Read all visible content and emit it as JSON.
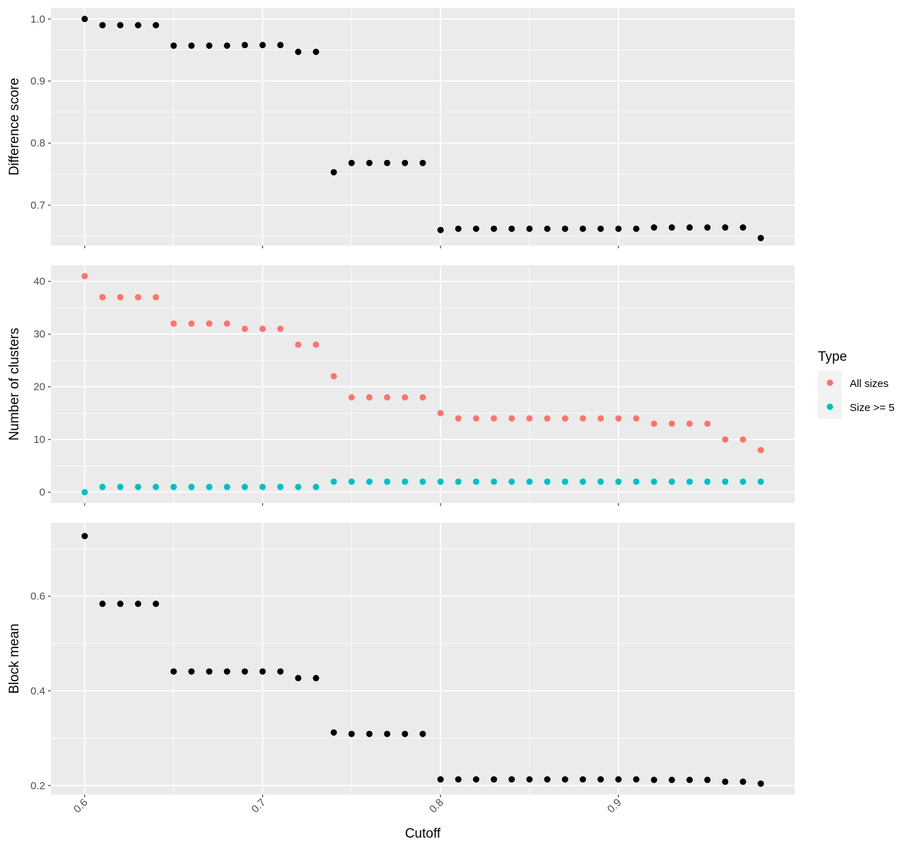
{
  "chart_data": [
    {
      "type": "scatter",
      "ylabel": "Difference score",
      "ylim": [
        0.635,
        1.018
      ],
      "yticks": [
        0.7,
        0.8,
        0.9,
        1.0
      ],
      "ytick_labels": [
        "0.7",
        "0.8",
        "0.9",
        "1.0"
      ],
      "series": [
        {
          "color": "#000000",
          "x": [
            0.6,
            0.61,
            0.62,
            0.63,
            0.64,
            0.65,
            0.66,
            0.67,
            0.68,
            0.69,
            0.7,
            0.71,
            0.72,
            0.73,
            0.74,
            0.75,
            0.76,
            0.77,
            0.78,
            0.79,
            0.8,
            0.81,
            0.82,
            0.83,
            0.84,
            0.85,
            0.86,
            0.87,
            0.88,
            0.89,
            0.9,
            0.91,
            0.92,
            0.93,
            0.94,
            0.95,
            0.96,
            0.97,
            0.98
          ],
          "y": [
            1.0,
            0.99,
            0.99,
            0.99,
            0.99,
            0.957,
            0.957,
            0.957,
            0.957,
            0.958,
            0.958,
            0.958,
            0.947,
            0.947,
            0.753,
            0.768,
            0.768,
            0.768,
            0.768,
            0.768,
            0.66,
            0.662,
            0.662,
            0.662,
            0.662,
            0.662,
            0.662,
            0.662,
            0.662,
            0.662,
            0.662,
            0.662,
            0.664,
            0.664,
            0.664,
            0.664,
            0.664,
            0.664,
            0.647
          ]
        }
      ]
    },
    {
      "type": "scatter",
      "ylabel": "Number of clusters",
      "ylim": [
        -2.05,
        43.05
      ],
      "yticks": [
        0,
        10,
        20,
        30,
        40
      ],
      "ytick_labels": [
        "0",
        "10",
        "20",
        "30",
        "40"
      ],
      "series": [
        {
          "name": "All sizes",
          "color": "#F8766D",
          "x": [
            0.6,
            0.61,
            0.62,
            0.63,
            0.64,
            0.65,
            0.66,
            0.67,
            0.68,
            0.69,
            0.7,
            0.71,
            0.72,
            0.73,
            0.74,
            0.75,
            0.76,
            0.77,
            0.78,
            0.79,
            0.8,
            0.81,
            0.82,
            0.83,
            0.84,
            0.85,
            0.86,
            0.87,
            0.88,
            0.89,
            0.9,
            0.91,
            0.92,
            0.93,
            0.94,
            0.95,
            0.96,
            0.97,
            0.98
          ],
          "y": [
            41,
            37,
            37,
            37,
            37,
            32,
            32,
            32,
            32,
            31,
            31,
            31,
            28,
            28,
            22,
            18,
            18,
            18,
            18,
            18,
            15,
            14,
            14,
            14,
            14,
            14,
            14,
            14,
            14,
            14,
            14,
            14,
            13,
            13,
            13,
            13,
            10,
            10,
            8
          ]
        },
        {
          "name": "Size >= 5",
          "color": "#00BFC4",
          "x": [
            0.6,
            0.61,
            0.62,
            0.63,
            0.64,
            0.65,
            0.66,
            0.67,
            0.68,
            0.69,
            0.7,
            0.71,
            0.72,
            0.73,
            0.74,
            0.75,
            0.76,
            0.77,
            0.78,
            0.79,
            0.8,
            0.81,
            0.82,
            0.83,
            0.84,
            0.85,
            0.86,
            0.87,
            0.88,
            0.89,
            0.9,
            0.91,
            0.92,
            0.93,
            0.94,
            0.95,
            0.96,
            0.97,
            0.98
          ],
          "y": [
            0,
            1,
            1,
            1,
            1,
            1,
            1,
            1,
            1,
            1,
            1,
            1,
            1,
            1,
            2,
            2,
            2,
            2,
            2,
            2,
            2,
            2,
            2,
            2,
            2,
            2,
            2,
            2,
            2,
            2,
            2,
            2,
            2,
            2,
            2,
            2,
            2,
            2,
            2
          ]
        }
      ]
    },
    {
      "type": "scatter",
      "xlabel": "Cutoff",
      "ylabel": "Block mean",
      "ylim": [
        0.181,
        0.755
      ],
      "yticks": [
        0.2,
        0.4,
        0.6
      ],
      "ytick_labels": [
        "0.2",
        "0.4",
        "0.6"
      ],
      "series": [
        {
          "color": "#000000",
          "x": [
            0.6,
            0.61,
            0.62,
            0.63,
            0.64,
            0.65,
            0.66,
            0.67,
            0.68,
            0.69,
            0.7,
            0.71,
            0.72,
            0.73,
            0.74,
            0.75,
            0.76,
            0.77,
            0.78,
            0.79,
            0.8,
            0.81,
            0.82,
            0.83,
            0.84,
            0.85,
            0.86,
            0.87,
            0.88,
            0.89,
            0.9,
            0.91,
            0.92,
            0.93,
            0.94,
            0.95,
            0.96,
            0.97,
            0.98
          ],
          "y": [
            0.727,
            0.584,
            0.584,
            0.584,
            0.584,
            0.441,
            0.441,
            0.441,
            0.441,
            0.441,
            0.441,
            0.441,
            0.427,
            0.427,
            0.312,
            0.309,
            0.309,
            0.309,
            0.309,
            0.309,
            0.213,
            0.213,
            0.213,
            0.213,
            0.213,
            0.213,
            0.213,
            0.213,
            0.213,
            0.213,
            0.213,
            0.213,
            0.212,
            0.212,
            0.212,
            0.212,
            0.208,
            0.208,
            0.204
          ]
        }
      ]
    }
  ],
  "x_axis": {
    "title": "Cutoff",
    "xlim": [
      0.581,
      0.999
    ],
    "ticks": [
      0.6,
      0.7,
      0.8,
      0.9
    ],
    "tick_labels": [
      "0.6",
      "0.7",
      "0.8",
      "0.9"
    ]
  },
  "legend": {
    "title": "Type",
    "position": "right",
    "items": [
      {
        "label": "All sizes",
        "color": "#F8766D"
      },
      {
        "label": "Size >= 5",
        "color": "#00BFC4"
      }
    ]
  },
  "style": {
    "panel_background": "#ebebeb",
    "grid_color": "#ffffff",
    "tick_label_color": "#4d4d4d"
  }
}
